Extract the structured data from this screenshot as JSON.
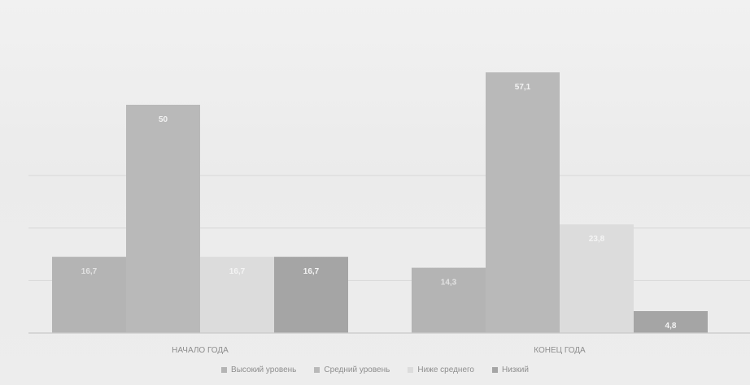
{
  "chart_data": {
    "type": "bar",
    "title": "",
    "xlabel": "",
    "ylabel": "",
    "categories": [
      "НАЧАЛО ГОДА",
      "КОНЕЦ ГОДА"
    ],
    "series": [
      {
        "name": "Высокий уровень",
        "values": [
          16.7,
          14.3
        ],
        "labels": [
          "16,7",
          "14,3"
        ],
        "color": "#b4b4b4",
        "label_color": "#e2e2e2"
      },
      {
        "name": "Средний уровень",
        "values": [
          50,
          57.1
        ],
        "labels": [
          "50",
          "57,1"
        ],
        "color": "#b9b9b9",
        "label_color": "#f2f2f2"
      },
      {
        "name": "Ниже среднего",
        "values": [
          16.7,
          23.8
        ],
        "labels": [
          "16,7",
          "23,8"
        ],
        "color": "#dcdcdc",
        "label_color": "#f4f4f4"
      },
      {
        "name": "Низкий",
        "values": [
          16.7,
          4.8
        ],
        "labels": [
          "16,7",
          "4,8"
        ],
        "color": "#a5a5a5",
        "label_color": "#f4f4f4"
      }
    ],
    "ylim": [
      0,
      60
    ],
    "grid": true,
    "legend_position": "bottom"
  }
}
